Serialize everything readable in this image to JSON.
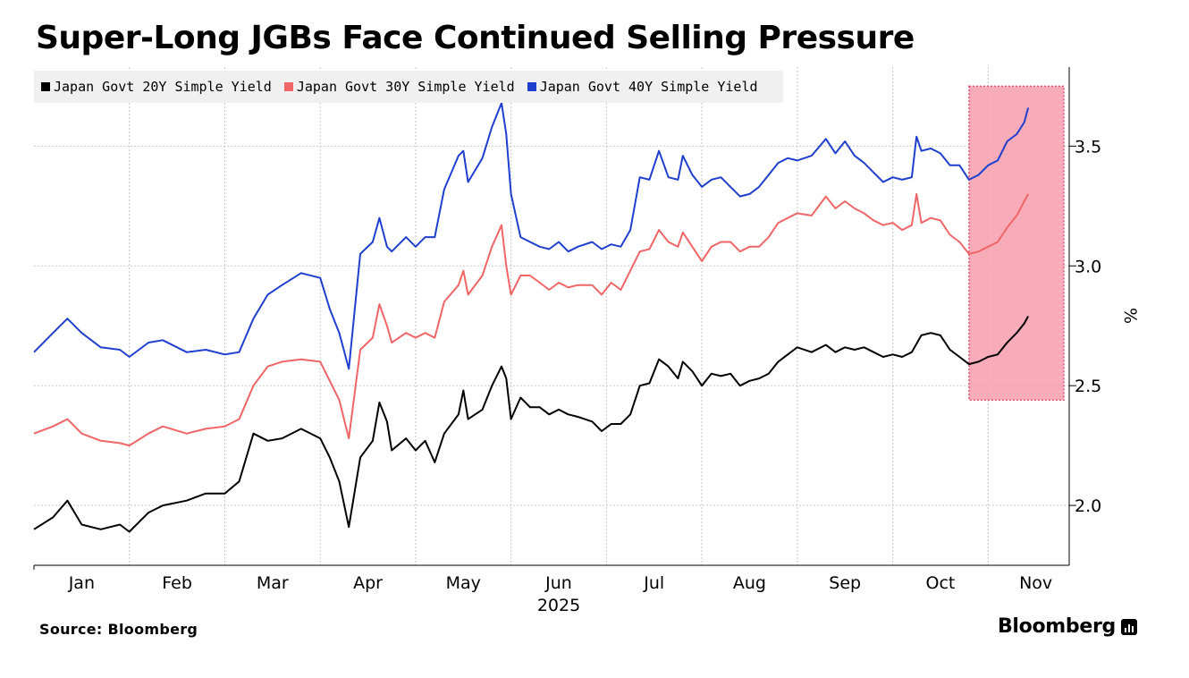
{
  "header": {
    "title": "Super-Long JGBs Face Continued Selling Pressure"
  },
  "footer": {
    "source": "Source: Bloomberg",
    "brand": "Bloomberg"
  },
  "colors": {
    "s20": "#000000",
    "s30": "#f06565",
    "s40": "#1f3fcf",
    "highlight": "#f7a3b3",
    "highlight_border": "#e0506e"
  },
  "chart_data": {
    "type": "line",
    "title": "Super-Long JGBs Face Continued Selling Pressure",
    "xlabel": "2025",
    "ylabel": "%",
    "x_unit": "month index (0 = Jan 1, 2025)",
    "xlim": [
      0,
      10.85
    ],
    "ylim": [
      1.75,
      3.83
    ],
    "yticks": [
      2.0,
      2.5,
      3.0,
      3.5
    ],
    "ytick_labels": [
      "2.0",
      "2.5",
      "3.0",
      "3.5"
    ],
    "xticks": [
      {
        "label": "Jan",
        "x": 0.5
      },
      {
        "label": "Feb",
        "x": 1.5
      },
      {
        "label": "Mar",
        "x": 2.5
      },
      {
        "label": "Apr",
        "x": 3.5
      },
      {
        "label": "May",
        "x": 4.5
      },
      {
        "label": "Jun",
        "x": 5.5
      },
      {
        "label": "Jul",
        "x": 6.5
      },
      {
        "label": "Aug",
        "x": 7.5
      },
      {
        "label": "Sep",
        "x": 8.5
      },
      {
        "label": "Oct",
        "x": 9.5
      },
      {
        "label": "Nov",
        "x": 10.5
      }
    ],
    "year_label": "2025",
    "highlight_region": {
      "x": [
        9.8,
        10.85
      ],
      "y": [
        2.44,
        3.75
      ]
    },
    "series": [
      {
        "name": "Japan Govt 20Y Simple Yield",
        "color": "#000000",
        "points": [
          [
            0,
            1.9
          ],
          [
            0.2,
            1.95
          ],
          [
            0.35,
            2.02
          ],
          [
            0.5,
            1.92
          ],
          [
            0.7,
            1.9
          ],
          [
            0.9,
            1.92
          ],
          [
            1.0,
            1.89
          ],
          [
            1.2,
            1.97
          ],
          [
            1.35,
            2.0
          ],
          [
            1.6,
            2.02
          ],
          [
            1.8,
            2.05
          ],
          [
            2.0,
            2.05
          ],
          [
            2.15,
            2.1
          ],
          [
            2.3,
            2.3
          ],
          [
            2.45,
            2.27
          ],
          [
            2.6,
            2.28
          ],
          [
            2.8,
            2.32
          ],
          [
            3.0,
            2.28
          ],
          [
            3.1,
            2.2
          ],
          [
            3.2,
            2.1
          ],
          [
            3.3,
            1.91
          ],
          [
            3.42,
            2.2
          ],
          [
            3.55,
            2.27
          ],
          [
            3.62,
            2.43
          ],
          [
            3.7,
            2.35
          ],
          [
            3.75,
            2.23
          ],
          [
            3.9,
            2.28
          ],
          [
            4.0,
            2.23
          ],
          [
            4.1,
            2.27
          ],
          [
            4.2,
            2.18
          ],
          [
            4.3,
            2.3
          ],
          [
            4.45,
            2.38
          ],
          [
            4.5,
            2.48
          ],
          [
            4.55,
            2.36
          ],
          [
            4.7,
            2.4
          ],
          [
            4.8,
            2.5
          ],
          [
            4.9,
            2.58
          ],
          [
            4.95,
            2.53
          ],
          [
            5.0,
            2.36
          ],
          [
            5.1,
            2.45
          ],
          [
            5.2,
            2.41
          ],
          [
            5.3,
            2.41
          ],
          [
            5.4,
            2.38
          ],
          [
            5.5,
            2.4
          ],
          [
            5.6,
            2.38
          ],
          [
            5.7,
            2.37
          ],
          [
            5.85,
            2.35
          ],
          [
            5.95,
            2.31
          ],
          [
            6.05,
            2.34
          ],
          [
            6.15,
            2.34
          ],
          [
            6.25,
            2.38
          ],
          [
            6.35,
            2.5
          ],
          [
            6.45,
            2.51
          ],
          [
            6.55,
            2.61
          ],
          [
            6.65,
            2.58
          ],
          [
            6.75,
            2.53
          ],
          [
            6.8,
            2.6
          ],
          [
            6.9,
            2.56
          ],
          [
            7.0,
            2.5
          ],
          [
            7.1,
            2.55
          ],
          [
            7.2,
            2.54
          ],
          [
            7.3,
            2.55
          ],
          [
            7.4,
            2.5
          ],
          [
            7.5,
            2.52
          ],
          [
            7.6,
            2.53
          ],
          [
            7.7,
            2.55
          ],
          [
            7.8,
            2.6
          ],
          [
            7.9,
            2.63
          ],
          [
            8.0,
            2.66
          ],
          [
            8.15,
            2.64
          ],
          [
            8.3,
            2.67
          ],
          [
            8.4,
            2.64
          ],
          [
            8.5,
            2.66
          ],
          [
            8.6,
            2.65
          ],
          [
            8.7,
            2.66
          ],
          [
            8.8,
            2.64
          ],
          [
            8.9,
            2.62
          ],
          [
            9.0,
            2.63
          ],
          [
            9.1,
            2.62
          ],
          [
            9.2,
            2.64
          ],
          [
            9.3,
            2.71
          ],
          [
            9.4,
            2.72
          ],
          [
            9.5,
            2.71
          ],
          [
            9.6,
            2.65
          ],
          [
            9.7,
            2.62
          ],
          [
            9.8,
            2.59
          ],
          [
            9.9,
            2.6
          ],
          [
            10.0,
            2.62
          ],
          [
            10.1,
            2.63
          ],
          [
            10.2,
            2.68
          ],
          [
            10.3,
            2.72
          ],
          [
            10.38,
            2.76
          ],
          [
            10.42,
            2.79
          ]
        ]
      },
      {
        "name": "Japan Govt 30Y Simple Yield",
        "color": "#f06565",
        "points": [
          [
            0,
            2.3
          ],
          [
            0.2,
            2.33
          ],
          [
            0.35,
            2.36
          ],
          [
            0.5,
            2.3
          ],
          [
            0.7,
            2.27
          ],
          [
            0.9,
            2.26
          ],
          [
            1.0,
            2.25
          ],
          [
            1.2,
            2.3
          ],
          [
            1.35,
            2.33
          ],
          [
            1.6,
            2.3
          ],
          [
            1.8,
            2.32
          ],
          [
            2.0,
            2.33
          ],
          [
            2.15,
            2.36
          ],
          [
            2.3,
            2.5
          ],
          [
            2.45,
            2.58
          ],
          [
            2.6,
            2.6
          ],
          [
            2.8,
            2.61
          ],
          [
            3.0,
            2.6
          ],
          [
            3.1,
            2.52
          ],
          [
            3.2,
            2.44
          ],
          [
            3.3,
            2.28
          ],
          [
            3.42,
            2.65
          ],
          [
            3.55,
            2.7
          ],
          [
            3.62,
            2.84
          ],
          [
            3.7,
            2.75
          ],
          [
            3.75,
            2.68
          ],
          [
            3.9,
            2.72
          ],
          [
            4.0,
            2.7
          ],
          [
            4.1,
            2.72
          ],
          [
            4.2,
            2.7
          ],
          [
            4.3,
            2.85
          ],
          [
            4.45,
            2.92
          ],
          [
            4.5,
            2.98
          ],
          [
            4.55,
            2.88
          ],
          [
            4.7,
            2.96
          ],
          [
            4.8,
            3.08
          ],
          [
            4.9,
            3.17
          ],
          [
            4.95,
            3.0
          ],
          [
            5.0,
            2.88
          ],
          [
            5.1,
            2.96
          ],
          [
            5.2,
            2.96
          ],
          [
            5.3,
            2.93
          ],
          [
            5.4,
            2.9
          ],
          [
            5.5,
            2.93
          ],
          [
            5.6,
            2.91
          ],
          [
            5.7,
            2.92
          ],
          [
            5.85,
            2.92
          ],
          [
            5.95,
            2.88
          ],
          [
            6.05,
            2.93
          ],
          [
            6.15,
            2.9
          ],
          [
            6.25,
            2.98
          ],
          [
            6.35,
            3.06
          ],
          [
            6.45,
            3.07
          ],
          [
            6.55,
            3.15
          ],
          [
            6.65,
            3.1
          ],
          [
            6.75,
            3.08
          ],
          [
            6.8,
            3.14
          ],
          [
            6.9,
            3.08
          ],
          [
            7.0,
            3.02
          ],
          [
            7.1,
            3.08
          ],
          [
            7.2,
            3.1
          ],
          [
            7.3,
            3.1
          ],
          [
            7.4,
            3.06
          ],
          [
            7.5,
            3.08
          ],
          [
            7.6,
            3.08
          ],
          [
            7.7,
            3.12
          ],
          [
            7.8,
            3.18
          ],
          [
            7.9,
            3.2
          ],
          [
            8.0,
            3.22
          ],
          [
            8.15,
            3.21
          ],
          [
            8.3,
            3.29
          ],
          [
            8.4,
            3.24
          ],
          [
            8.5,
            3.27
          ],
          [
            8.6,
            3.24
          ],
          [
            8.7,
            3.22
          ],
          [
            8.8,
            3.19
          ],
          [
            8.9,
            3.17
          ],
          [
            9.0,
            3.18
          ],
          [
            9.1,
            3.15
          ],
          [
            9.2,
            3.17
          ],
          [
            9.25,
            3.3
          ],
          [
            9.3,
            3.18
          ],
          [
            9.4,
            3.2
          ],
          [
            9.5,
            3.19
          ],
          [
            9.6,
            3.13
          ],
          [
            9.7,
            3.1
          ],
          [
            9.8,
            3.05
          ],
          [
            9.9,
            3.06
          ],
          [
            10.0,
            3.08
          ],
          [
            10.1,
            3.1
          ],
          [
            10.2,
            3.16
          ],
          [
            10.3,
            3.21
          ],
          [
            10.38,
            3.27
          ],
          [
            10.42,
            3.3
          ]
        ]
      },
      {
        "name": "Japan Govt 40Y Simple Yield",
        "color": "#1f3fcf",
        "points": [
          [
            0,
            2.64
          ],
          [
            0.2,
            2.72
          ],
          [
            0.35,
            2.78
          ],
          [
            0.5,
            2.72
          ],
          [
            0.7,
            2.66
          ],
          [
            0.9,
            2.65
          ],
          [
            1.0,
            2.62
          ],
          [
            1.2,
            2.68
          ],
          [
            1.35,
            2.69
          ],
          [
            1.6,
            2.64
          ],
          [
            1.8,
            2.65
          ],
          [
            2.0,
            2.63
          ],
          [
            2.15,
            2.64
          ],
          [
            2.3,
            2.78
          ],
          [
            2.45,
            2.88
          ],
          [
            2.6,
            2.92
          ],
          [
            2.8,
            2.97
          ],
          [
            3.0,
            2.95
          ],
          [
            3.1,
            2.82
          ],
          [
            3.2,
            2.72
          ],
          [
            3.3,
            2.57
          ],
          [
            3.42,
            3.05
          ],
          [
            3.55,
            3.1
          ],
          [
            3.62,
            3.2
          ],
          [
            3.7,
            3.08
          ],
          [
            3.75,
            3.06
          ],
          [
            3.9,
            3.12
          ],
          [
            4.0,
            3.08
          ],
          [
            4.1,
            3.12
          ],
          [
            4.2,
            3.12
          ],
          [
            4.3,
            3.32
          ],
          [
            4.45,
            3.46
          ],
          [
            4.5,
            3.48
          ],
          [
            4.55,
            3.35
          ],
          [
            4.7,
            3.45
          ],
          [
            4.8,
            3.58
          ],
          [
            4.9,
            3.68
          ],
          [
            4.95,
            3.55
          ],
          [
            5.0,
            3.3
          ],
          [
            5.1,
            3.12
          ],
          [
            5.2,
            3.1
          ],
          [
            5.3,
            3.08
          ],
          [
            5.4,
            3.07
          ],
          [
            5.5,
            3.1
          ],
          [
            5.6,
            3.06
          ],
          [
            5.7,
            3.08
          ],
          [
            5.85,
            3.1
          ],
          [
            5.95,
            3.07
          ],
          [
            6.05,
            3.09
          ],
          [
            6.15,
            3.08
          ],
          [
            6.25,
            3.15
          ],
          [
            6.35,
            3.37
          ],
          [
            6.45,
            3.36
          ],
          [
            6.55,
            3.48
          ],
          [
            6.65,
            3.37
          ],
          [
            6.75,
            3.36
          ],
          [
            6.8,
            3.46
          ],
          [
            6.9,
            3.38
          ],
          [
            7.0,
            3.33
          ],
          [
            7.1,
            3.36
          ],
          [
            7.2,
            3.37
          ],
          [
            7.3,
            3.33
          ],
          [
            7.4,
            3.29
          ],
          [
            7.5,
            3.3
          ],
          [
            7.6,
            3.33
          ],
          [
            7.7,
            3.38
          ],
          [
            7.8,
            3.43
          ],
          [
            7.9,
            3.45
          ],
          [
            8.0,
            3.44
          ],
          [
            8.15,
            3.46
          ],
          [
            8.3,
            3.53
          ],
          [
            8.4,
            3.47
          ],
          [
            8.5,
            3.52
          ],
          [
            8.6,
            3.46
          ],
          [
            8.7,
            3.43
          ],
          [
            8.8,
            3.39
          ],
          [
            8.9,
            3.35
          ],
          [
            9.0,
            3.37
          ],
          [
            9.1,
            3.36
          ],
          [
            9.2,
            3.37
          ],
          [
            9.25,
            3.54
          ],
          [
            9.3,
            3.48
          ],
          [
            9.4,
            3.49
          ],
          [
            9.5,
            3.47
          ],
          [
            9.6,
            3.42
          ],
          [
            9.7,
            3.42
          ],
          [
            9.8,
            3.36
          ],
          [
            9.9,
            3.38
          ],
          [
            10.0,
            3.42
          ],
          [
            10.1,
            3.44
          ],
          [
            10.2,
            3.52
          ],
          [
            10.3,
            3.55
          ],
          [
            10.38,
            3.6
          ],
          [
            10.42,
            3.66
          ]
        ]
      }
    ]
  }
}
